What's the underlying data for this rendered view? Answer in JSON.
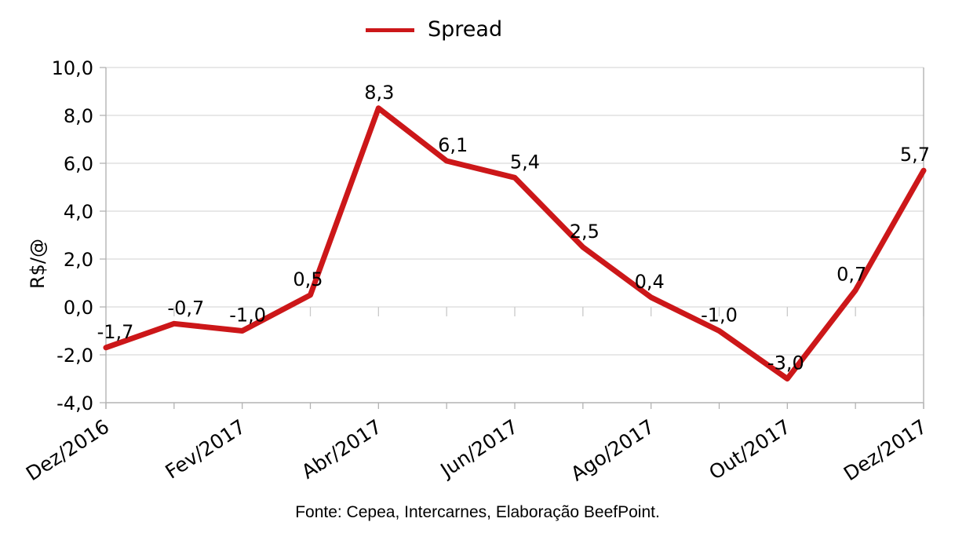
{
  "legend": {
    "series_label": "Spread"
  },
  "footer": {
    "source_text": "Fonte: Cepea, Intercarnes, Elaboração BeefPoint."
  },
  "colors": {
    "series_line": "#cc1719",
    "gridline": "#d9d9d9",
    "axis_line": "#b3b3b3",
    "interval_mark": "#c9c9c9",
    "text": "#000000"
  },
  "chart_data": {
    "type": "line",
    "title": "",
    "series": [
      {
        "name": "Spread",
        "color": "#cc1719",
        "values": [
          -1.7,
          -0.7,
          -1.0,
          0.5,
          8.3,
          6.1,
          5.4,
          2.5,
          0.4,
          -1.0,
          -3.0,
          0.7,
          5.7
        ],
        "data_labels": [
          "-1,7",
          "-0,7",
          "-1,0",
          "0,5",
          "8,3",
          "6,1",
          "5,4",
          "2,5",
          "0,4",
          "-1,0",
          "-3,0",
          "0,7",
          "5,7"
        ]
      }
    ],
    "x_axis": {
      "tick_labels": [
        "Dez/2016",
        "Fev/2017",
        "Abr/2017",
        "Jun/2017",
        "Ago/2017",
        "Out/2017",
        "Dez/2017"
      ],
      "points_per_labeled_tick": 2,
      "label_rotation_deg": -33
    },
    "y_axis": {
      "title": "R$/@",
      "tick_labels": [
        "10,0",
        "8,0",
        "6,0",
        "4,0",
        "2,0",
        "0,0",
        "-2,0",
        "-4,0"
      ],
      "min": -4.0,
      "max": 10.0,
      "step": 2.0
    },
    "grid": {
      "horizontal": true,
      "vertical": false
    },
    "legend_position": "top"
  }
}
